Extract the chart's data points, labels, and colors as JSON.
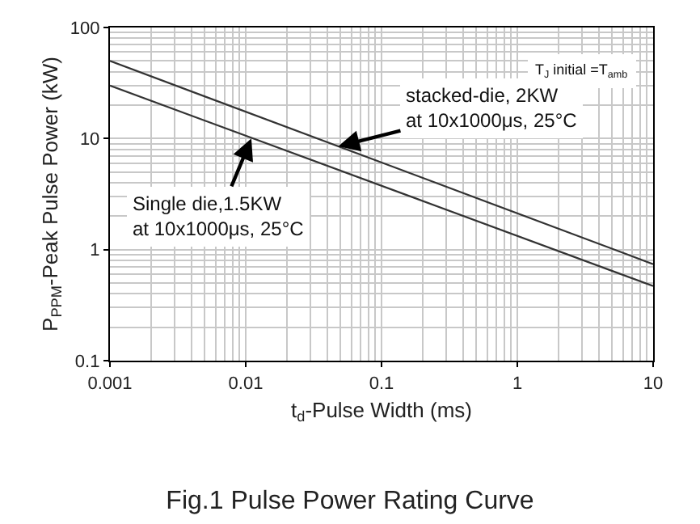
{
  "chart_data": {
    "type": "line",
    "title": "Fig.1 Pulse Power Rating Curve",
    "xlabel": "t$_{d}$-Pulse Width (ms)",
    "ylabel": "P$_{PPM}$-Peak Pulse Power (kW)",
    "x": [
      0.001,
      10
    ],
    "series": [
      {
        "color": "#333333",
        "values": [
          50,
          0.74
        ]
      },
      {
        "color": "#333333",
        "values": [
          30,
          0.47
        ]
      }
    ],
    "log": "xy",
    "xlim": [
      0.001,
      10
    ],
    "ylim": [
      0.1,
      100
    ],
    "xticks": [
      0.001,
      0.01,
      0.1,
      1,
      10
    ],
    "yticks": [
      0.1,
      1,
      10,
      100
    ],
    "grid": true,
    "marker": "none",
    "line_style": "solid",
    "annotations": [
      {
        "text": "stacked-die, 2KW\nat 10x1000μs, 25°C",
        "x": 0.048,
        "y": 8.5
      },
      {
        "text": "Single die,1.5KW\nat 10x1000μs, 25°C",
        "x": 0.011,
        "y": 10
      },
      "T$_{J}$ initial =T$_{amb}$"
    ]
  }
}
